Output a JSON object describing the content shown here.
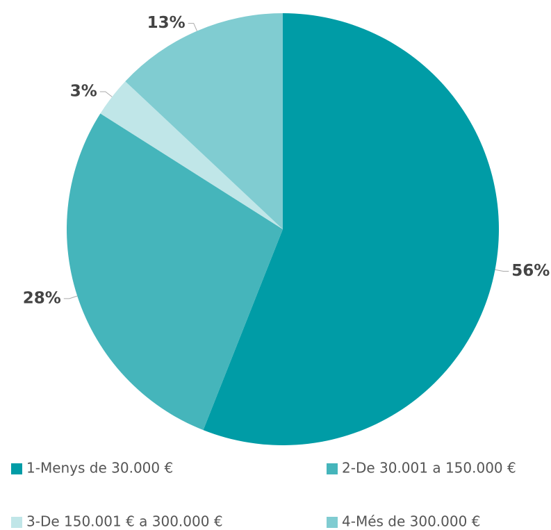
{
  "chart_data": {
    "type": "pie",
    "categories": [
      "1-Menys de 30.000 €",
      "2-De 30.001 a 150.000 €",
      "3-De 150.001 € a 300.000 €",
      "4-Més de 300.000 €"
    ],
    "values": [
      56,
      28,
      3,
      13
    ],
    "value_labels": [
      "56%",
      "28%",
      "3%",
      "13%"
    ],
    "colors": [
      "#009ca6",
      "#45b5bb",
      "#c0e6e8",
      "#80ccd1"
    ],
    "legend": "bottom"
  }
}
